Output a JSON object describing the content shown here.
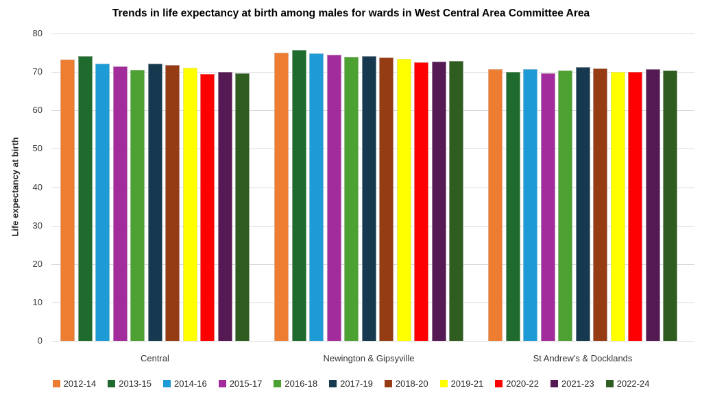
{
  "chart_data": {
    "type": "bar",
    "title": "Trends in life expectancy at birth among males for wards in West Central Area Committee Area",
    "ylabel": "Life expectancy at birth",
    "xlabel": "",
    "ylim": [
      0,
      80
    ],
    "ytick_step": 10,
    "grid": true,
    "legend_position": "bottom",
    "gridline_color": "#d9d9d9",
    "categories": [
      "Central",
      "Newington & Gipsyville",
      "St Andrew's & Docklands"
    ],
    "series": [
      {
        "name": "2012-14",
        "color": "#ED7D31",
        "values": [
          73.3,
          75.0,
          70.7
        ]
      },
      {
        "name": "2013-15",
        "color": "#1E6B2D",
        "values": [
          74.1,
          75.7,
          70.1
        ]
      },
      {
        "name": "2014-16",
        "color": "#1D9BD7",
        "values": [
          72.2,
          74.9,
          70.7
        ]
      },
      {
        "name": "2015-17",
        "color": "#A32C9C",
        "values": [
          71.5,
          74.5,
          69.7
        ]
      },
      {
        "name": "2016-18",
        "color": "#4DA032",
        "values": [
          70.6,
          74.0,
          70.3
        ]
      },
      {
        "name": "2017-19",
        "color": "#16394F",
        "values": [
          72.1,
          74.2,
          71.2
        ]
      },
      {
        "name": "2018-20",
        "color": "#963C14",
        "values": [
          71.8,
          73.8,
          70.9
        ]
      },
      {
        "name": "2019-21",
        "color": "#FFFF00",
        "values": [
          71.1,
          73.4,
          70.0
        ]
      },
      {
        "name": "2020-22",
        "color": "#FF0000",
        "values": [
          69.5,
          72.5,
          70.1
        ]
      },
      {
        "name": "2021-23",
        "color": "#551A53",
        "values": [
          70.1,
          72.7,
          70.8
        ]
      },
      {
        "name": "2022-24",
        "color": "#2F5C1F",
        "values": [
          69.6,
          72.9,
          70.3
        ]
      }
    ]
  }
}
